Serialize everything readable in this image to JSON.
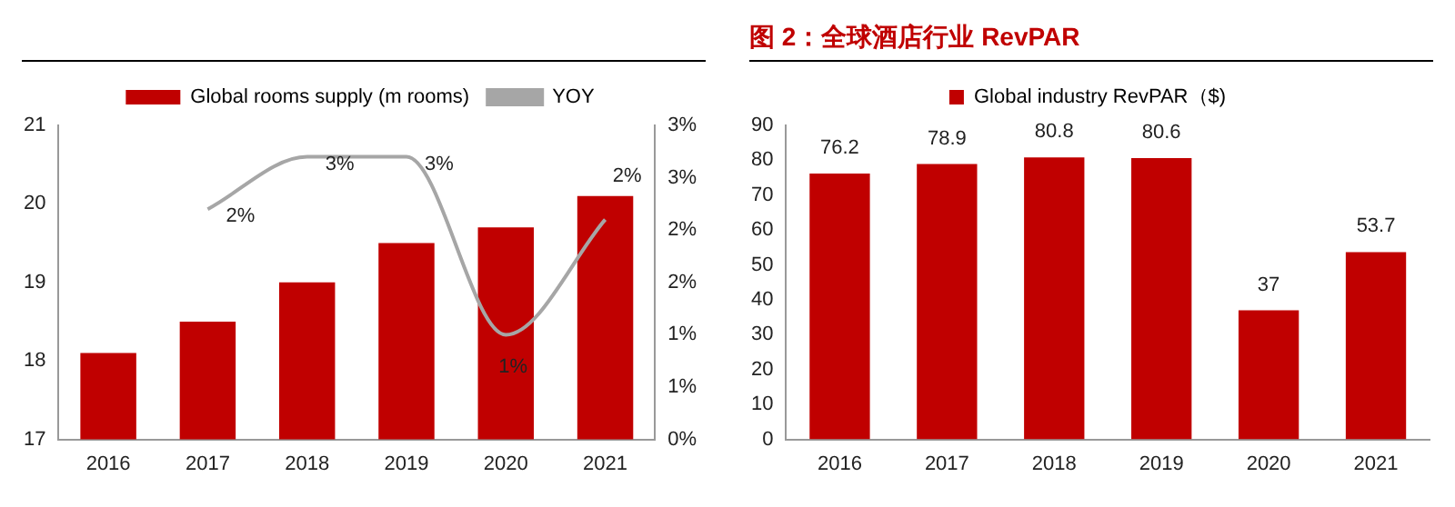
{
  "chart_data": [
    {
      "type": "bar",
      "categories": [
        "2016",
        "2017",
        "2018",
        "2019",
        "2020",
        "2021"
      ],
      "series": [
        {
          "name": "Global rooms supply (m rooms)",
          "color": "#c00000",
          "values": [
            18.1,
            18.5,
            19.0,
            19.5,
            19.7,
            20.1
          ]
        },
        {
          "name": "YOY",
          "type": "line",
          "axis": "y2",
          "color": "#a6a6a6",
          "values": [
            null,
            2.2,
            2.7,
            2.7,
            1.0,
            2.1
          ],
          "value_labels": [
            null,
            "2%",
            "3%",
            "3%",
            "1%",
            "2%"
          ]
        }
      ],
      "ylim": [
        17,
        21
      ],
      "yticks": [
        17,
        18,
        19,
        20,
        21
      ],
      "y2lim": [
        0,
        3
      ],
      "y2ticks": [
        {
          "value": 0,
          "label": "0%"
        },
        {
          "value": 0.5,
          "label": "1%"
        },
        {
          "value": 1,
          "label": "1%"
        },
        {
          "value": 1.5,
          "label": "2%"
        },
        {
          "value": 2,
          "label": "2%"
        },
        {
          "value": 2.5,
          "label": "3%"
        },
        {
          "value": 3,
          "label": "3%"
        }
      ],
      "legend": "top",
      "grid": false,
      "marker": "none"
    },
    {
      "type": "bar",
      "title": "图 2：全球酒店行业 RevPAR",
      "categories": [
        "2016",
        "2017",
        "2018",
        "2019",
        "2020",
        "2021"
      ],
      "series": [
        {
          "name": "Global industry RevPAR（$)",
          "color": "#c00000",
          "values": [
            76.2,
            78.9,
            80.8,
            80.6,
            37,
            53.7
          ]
        }
      ],
      "ylim": [
        0,
        90
      ],
      "yticks": [
        0,
        10,
        20,
        30,
        40,
        50,
        60,
        70,
        80,
        90
      ],
      "legend": "top",
      "grid": false,
      "data_labels": true
    }
  ]
}
